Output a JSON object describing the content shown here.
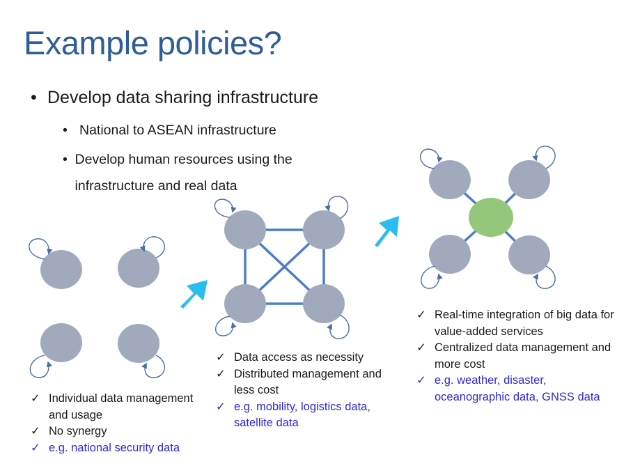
{
  "slide": {
    "title": "Example policies?",
    "bullet": "Develop data sharing infrastructure",
    "subbullets": [
      "National to ASEAN infrastructure",
      "Develop human resources using the infrastructure and real data"
    ]
  },
  "colors": {
    "title": "#2e5d99",
    "node": "#a1aabd",
    "hub": "#94c77a",
    "edge": "#4a7ec9",
    "arrow": "#29bdf0",
    "example_text": "#2b2bd6"
  },
  "models": [
    {
      "items": [
        {
          "check": "✓",
          "text": "Individual data management and usage",
          "example": false
        },
        {
          "check": "✓",
          "text": "No synergy",
          "example": false
        },
        {
          "check": "✓",
          "text": "e.g. national security data",
          "example": true
        }
      ]
    },
    {
      "items": [
        {
          "check": "✓",
          "text": "Data access as necessity",
          "example": false
        },
        {
          "check": "✓",
          "text": "Distributed management and less cost",
          "example": false
        },
        {
          "check": "✓",
          "text": "e.g. mobility, logistics data, satellite data",
          "example": true
        }
      ]
    },
    {
      "items": [
        {
          "check": "✓",
          "text": "Real-time integration of big data for value-added services",
          "example": false
        },
        {
          "check": "✓",
          "text": "Centralized data management and more cost",
          "example": false
        },
        {
          "check": "✓",
          "text": "e.g. weather, disaster, oceanographic data, GNSS data",
          "example": true
        }
      ]
    }
  ]
}
